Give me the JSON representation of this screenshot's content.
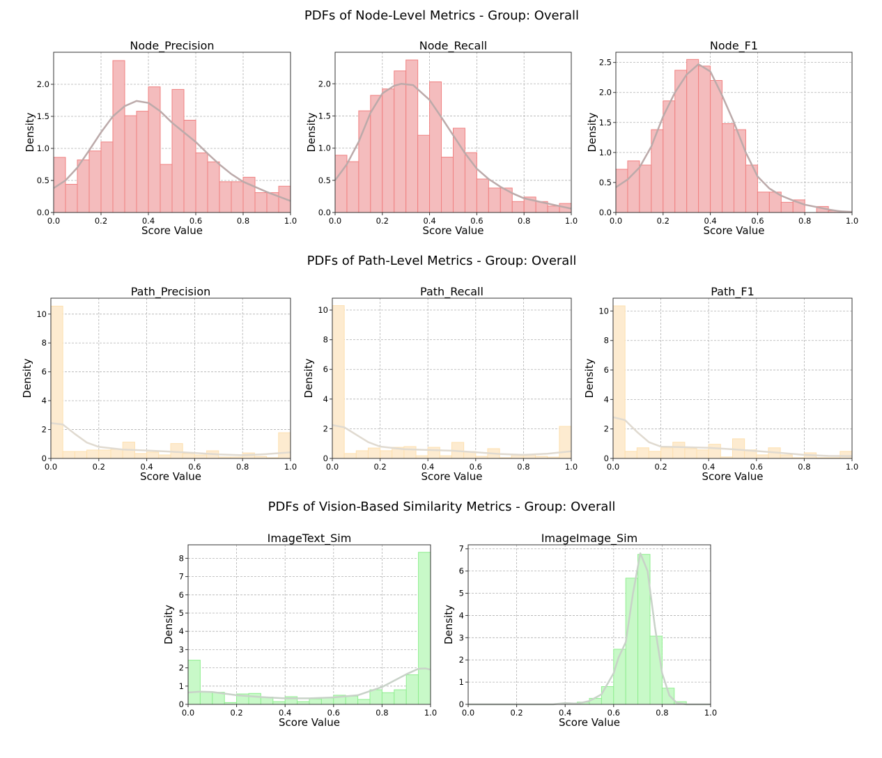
{
  "section_titles": [
    "PDFs of Node-Level Metrics - Group: Overall",
    "PDFs of Path-Level Metrics - Group: Overall",
    "PDFs of Vision-Based Similarity Metrics - Group: Overall"
  ],
  "chart_data": [
    {
      "type": "histogram+kde",
      "title": "Node_Precision",
      "xlabel": "Score Value",
      "ylabel": "Density",
      "xlim": [
        0,
        1
      ],
      "ylim": [
        0,
        2.5
      ],
      "xticks": [
        "0.0",
        "0.2",
        "0.4",
        "0.6",
        "0.8",
        "1.0"
      ],
      "yticks": [
        "0.0",
        "0.5",
        "1.0",
        "1.5",
        "2.0"
      ],
      "grid": true,
      "bin_width": 0.05,
      "bar_color": "#f4bcbd",
      "edge_color": "#f08080",
      "kde_color": "#bcaaaa",
      "values": [
        0.86,
        0.44,
        0.82,
        0.96,
        1.1,
        2.37,
        1.51,
        1.58,
        1.96,
        0.75,
        1.92,
        1.44,
        0.93,
        0.79,
        0.48,
        0.48,
        0.55,
        0.31,
        0.31,
        0.41
      ],
      "kde": [
        [
          0,
          0.38
        ],
        [
          0.05,
          0.5
        ],
        [
          0.1,
          0.7
        ],
        [
          0.15,
          0.97
        ],
        [
          0.2,
          1.25
        ],
        [
          0.25,
          1.5
        ],
        [
          0.3,
          1.66
        ],
        [
          0.35,
          1.74
        ],
        [
          0.4,
          1.71
        ],
        [
          0.45,
          1.58
        ],
        [
          0.5,
          1.4
        ],
        [
          0.55,
          1.25
        ],
        [
          0.6,
          1.1
        ],
        [
          0.65,
          0.92
        ],
        [
          0.7,
          0.75
        ],
        [
          0.75,
          0.6
        ],
        [
          0.8,
          0.48
        ],
        [
          0.85,
          0.4
        ],
        [
          0.9,
          0.32
        ],
        [
          0.95,
          0.25
        ],
        [
          1.0,
          0.18
        ]
      ]
    },
    {
      "type": "histogram+kde",
      "title": "Node_Recall",
      "xlabel": "Score Value",
      "ylabel": "Density",
      "xlim": [
        0,
        1
      ],
      "ylim": [
        0,
        2.49
      ],
      "xticks": [
        "0.0",
        "0.2",
        "0.4",
        "0.6",
        "0.8",
        "1.0"
      ],
      "yticks": [
        "0.0",
        "0.5",
        "1.0",
        "1.5",
        "2.0"
      ],
      "grid": true,
      "bin_width": 0.05,
      "bar_color": "#f4bcbd",
      "edge_color": "#f08080",
      "kde_color": "#bcaaaa",
      "values": [
        0.89,
        0.79,
        1.58,
        1.82,
        1.92,
        2.2,
        2.37,
        1.2,
        2.03,
        0.86,
        1.31,
        0.93,
        0.52,
        0.38,
        0.38,
        0.17,
        0.24,
        0.17,
        0.1,
        0.14
      ],
      "kde": [
        [
          0,
          0.5
        ],
        [
          0.05,
          0.75
        ],
        [
          0.1,
          1.1
        ],
        [
          0.15,
          1.55
        ],
        [
          0.2,
          1.85
        ],
        [
          0.25,
          1.97
        ],
        [
          0.28,
          2.0
        ],
        [
          0.33,
          1.98
        ],
        [
          0.4,
          1.75
        ],
        [
          0.45,
          1.48
        ],
        [
          0.5,
          1.2
        ],
        [
          0.55,
          0.92
        ],
        [
          0.6,
          0.68
        ],
        [
          0.65,
          0.52
        ],
        [
          0.7,
          0.4
        ],
        [
          0.75,
          0.3
        ],
        [
          0.8,
          0.22
        ],
        [
          0.85,
          0.18
        ],
        [
          0.9,
          0.14
        ],
        [
          0.95,
          0.1
        ],
        [
          1.0,
          0.06
        ]
      ]
    },
    {
      "type": "histogram+kde",
      "title": "Node_F1",
      "xlabel": "Score Value",
      "ylabel": "Density",
      "xlim": [
        0,
        1
      ],
      "ylim": [
        0,
        2.67
      ],
      "xticks": [
        "0.0",
        "0.2",
        "0.4",
        "0.6",
        "0.8",
        "1.0"
      ],
      "yticks": [
        "0.0",
        "0.5",
        "1.0",
        "1.5",
        "2.0",
        "2.5"
      ],
      "grid": true,
      "bin_width": 0.05,
      "bar_color": "#f4bcbd",
      "edge_color": "#f08080",
      "kde_color": "#bcaaaa",
      "values": [
        0.72,
        0.86,
        0.79,
        1.38,
        1.86,
        2.37,
        2.55,
        2.44,
        2.2,
        1.48,
        1.38,
        0.79,
        0.34,
        0.34,
        0.17,
        0.21,
        0,
        0.1,
        0.03,
        0
      ],
      "kde": [
        [
          0,
          0.42
        ],
        [
          0.05,
          0.55
        ],
        [
          0.1,
          0.75
        ],
        [
          0.15,
          1.1
        ],
        [
          0.2,
          1.6
        ],
        [
          0.25,
          2.0
        ],
        [
          0.3,
          2.3
        ],
        [
          0.35,
          2.47
        ],
        [
          0.4,
          2.35
        ],
        [
          0.45,
          1.95
        ],
        [
          0.5,
          1.5
        ],
        [
          0.55,
          1.0
        ],
        [
          0.6,
          0.6
        ],
        [
          0.65,
          0.4
        ],
        [
          0.7,
          0.28
        ],
        [
          0.75,
          0.2
        ],
        [
          0.8,
          0.13
        ],
        [
          0.85,
          0.09
        ],
        [
          0.9,
          0.05
        ],
        [
          0.95,
          0.02
        ],
        [
          1.0,
          0.01
        ]
      ]
    },
    {
      "type": "histogram+kde",
      "title": "Path_Precision",
      "xlabel": "Score Value",
      "ylabel": "Density",
      "xlim": [
        0,
        1
      ],
      "ylim": [
        0,
        11.1
      ],
      "xticks": [
        "0.0",
        "0.2",
        "0.4",
        "0.6",
        "0.8",
        "1.0"
      ],
      "yticks": [
        "0",
        "2",
        "4",
        "6",
        "8",
        "10"
      ],
      "grid": true,
      "bin_width": 0.05,
      "bar_color": "#fdebd0",
      "edge_color": "#fde0b0",
      "kde_color": "#e0dad0",
      "values": [
        10.55,
        0.48,
        0.48,
        0.58,
        0.58,
        0.63,
        1.13,
        0.34,
        0.44,
        0.24,
        1.03,
        0.34,
        0.24,
        0.53,
        0.1,
        0.1,
        0.38,
        0.14,
        0.05,
        1.78
      ],
      "kde": [
        [
          0,
          2.45
        ],
        [
          0.05,
          2.35
        ],
        [
          0.1,
          1.7
        ],
        [
          0.15,
          1.1
        ],
        [
          0.2,
          0.8
        ],
        [
          0.3,
          0.62
        ],
        [
          0.4,
          0.55
        ],
        [
          0.5,
          0.47
        ],
        [
          0.6,
          0.38
        ],
        [
          0.7,
          0.28
        ],
        [
          0.8,
          0.22
        ],
        [
          0.9,
          0.3
        ],
        [
          1.0,
          0.42
        ]
      ]
    },
    {
      "type": "histogram+kde",
      "title": "Path_Recall",
      "xlabel": "Score Value",
      "ylabel": "Density",
      "xlim": [
        0,
        1
      ],
      "ylim": [
        0,
        10.8
      ],
      "xticks": [
        "0.0",
        "0.2",
        "0.4",
        "0.6",
        "0.8",
        "1.0"
      ],
      "yticks": [
        "0",
        "2",
        "4",
        "6",
        "8",
        "10"
      ],
      "grid": true,
      "bin_width": 0.05,
      "bar_color": "#fdebd0",
      "edge_color": "#fde0b0",
      "kde_color": "#e0dad0",
      "values": [
        10.3,
        0.33,
        0.52,
        0.7,
        0.52,
        0.75,
        0.8,
        0.18,
        0.75,
        0.18,
        1.08,
        0.47,
        0.14,
        0.66,
        0.05,
        0.24,
        0.24,
        0.14,
        0.09,
        2.16
      ],
      "kde": [
        [
          0,
          2.25
        ],
        [
          0.05,
          2.1
        ],
        [
          0.1,
          1.6
        ],
        [
          0.15,
          1.1
        ],
        [
          0.2,
          0.8
        ],
        [
          0.3,
          0.62
        ],
        [
          0.4,
          0.57
        ],
        [
          0.5,
          0.52
        ],
        [
          0.6,
          0.42
        ],
        [
          0.7,
          0.3
        ],
        [
          0.8,
          0.24
        ],
        [
          0.9,
          0.32
        ],
        [
          1.0,
          0.48
        ]
      ]
    },
    {
      "type": "histogram+kde",
      "title": "Path_F1",
      "xlabel": "Score Value",
      "ylabel": "Density",
      "xlim": [
        0,
        1
      ],
      "ylim": [
        0,
        10.87
      ],
      "xticks": [
        "0.0",
        "0.2",
        "0.4",
        "0.6",
        "0.8",
        "1.0"
      ],
      "yticks": [
        "0",
        "2",
        "4",
        "6",
        "8",
        "10"
      ],
      "grid": true,
      "bin_width": 0.05,
      "bar_color": "#fdebd0",
      "edge_color": "#fde0b0",
      "kde_color": "#e0dad0",
      "values": [
        10.35,
        0.48,
        0.72,
        0.48,
        0.72,
        1.1,
        0.67,
        0.58,
        0.96,
        0.1,
        1.33,
        0.58,
        0.24,
        0.72,
        0.24,
        0.05,
        0.38,
        0.05,
        0.05,
        0.48
      ],
      "kde": [
        [
          0,
          2.8
        ],
        [
          0.05,
          2.6
        ],
        [
          0.1,
          1.8
        ],
        [
          0.15,
          1.1
        ],
        [
          0.2,
          0.8
        ],
        [
          0.3,
          0.76
        ],
        [
          0.4,
          0.72
        ],
        [
          0.5,
          0.62
        ],
        [
          0.6,
          0.5
        ],
        [
          0.7,
          0.38
        ],
        [
          0.8,
          0.24
        ],
        [
          0.9,
          0.17
        ],
        [
          1.0,
          0.16
        ]
      ]
    },
    {
      "type": "histogram+kde",
      "title": "ImageText_Sim",
      "xlabel": "Score Value",
      "ylabel": "Density",
      "xlim": [
        0,
        1
      ],
      "ylim": [
        0,
        8.74
      ],
      "xticks": [
        "0.0",
        "0.2",
        "0.4",
        "0.6",
        "0.8",
        "1.0"
      ],
      "yticks": [
        "0",
        "1",
        "2",
        "3",
        "4",
        "5",
        "6",
        "7",
        "8"
      ],
      "grid": true,
      "bin_width": 0.05,
      "bar_color": "#c8f9c8",
      "edge_color": "#90ee90",
      "kde_color": "#c8d2c8",
      "values": [
        2.42,
        0.7,
        0.66,
        0.1,
        0.57,
        0.6,
        0.4,
        0.15,
        0.42,
        0.15,
        0.3,
        0.35,
        0.5,
        0.45,
        0.27,
        0.8,
        0.64,
        0.8,
        1.62,
        8.33
      ],
      "kde": [
        [
          0,
          0.65
        ],
        [
          0.05,
          0.7
        ],
        [
          0.1,
          0.68
        ],
        [
          0.2,
          0.5
        ],
        [
          0.3,
          0.4
        ],
        [
          0.4,
          0.33
        ],
        [
          0.5,
          0.33
        ],
        [
          0.6,
          0.38
        ],
        [
          0.7,
          0.5
        ],
        [
          0.8,
          0.95
        ],
        [
          0.9,
          1.65
        ],
        [
          0.95,
          1.95
        ],
        [
          0.98,
          1.97
        ],
        [
          1.0,
          1.9
        ]
      ]
    },
    {
      "type": "histogram+kde",
      "title": "ImageImage_Sim",
      "xlabel": "Score Value",
      "ylabel": "Density",
      "xlim": [
        0,
        1
      ],
      "ylim": [
        0,
        7.18
      ],
      "xticks": [
        "0.0",
        "0.2",
        "0.4",
        "0.6",
        "0.8",
        "1.0"
      ],
      "yticks": [
        "0",
        "1",
        "2",
        "3",
        "4",
        "5",
        "6",
        "7"
      ],
      "grid": true,
      "bin_width": 0.05,
      "bar_color": "#c8f9c8",
      "edge_color": "#90ee90",
      "kde_color": "#c8d2c8",
      "values": [
        0,
        0,
        0,
        0,
        0,
        0,
        0,
        0,
        0.06,
        0.1,
        0.27,
        0.8,
        2.48,
        5.68,
        6.75,
        3.07,
        0.73,
        0.12,
        0,
        0
      ],
      "kde": [
        [
          0,
          0
        ],
        [
          0.35,
          0
        ],
        [
          0.4,
          0.06
        ],
        [
          0.45,
          0.03
        ],
        [
          0.5,
          0.15
        ],
        [
          0.55,
          0.45
        ],
        [
          0.6,
          1.4
        ],
        [
          0.62,
          2.1
        ],
        [
          0.65,
          2.8
        ],
        [
          0.68,
          5.0
        ],
        [
          0.71,
          6.8
        ],
        [
          0.74,
          6.0
        ],
        [
          0.77,
          3.5
        ],
        [
          0.8,
          1.4
        ],
        [
          0.83,
          0.4
        ],
        [
          0.86,
          0.07
        ],
        [
          0.9,
          0
        ],
        [
          1.0,
          0
        ]
      ]
    }
  ]
}
